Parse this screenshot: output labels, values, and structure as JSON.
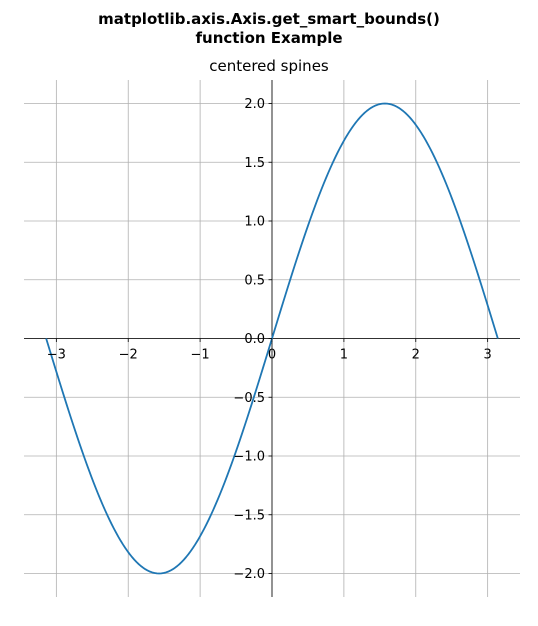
{
  "figure": {
    "suptitle_line1": "matplotlib.axis.Axis.get_smart_bounds()",
    "suptitle_line2": "function Example",
    "axes_title": "centered spines"
  },
  "chart_data": {
    "type": "line",
    "title": "centered spines",
    "xlabel": "",
    "ylabel": "",
    "xlim": [
      -3.45,
      3.45
    ],
    "ylim": [
      -2.2,
      2.2
    ],
    "xticks": [
      -3,
      -2,
      -1,
      0,
      1,
      2,
      3
    ],
    "xtick_labels": [
      "−3",
      "−2",
      "−1",
      "0",
      "1",
      "2",
      "3"
    ],
    "yticks": [
      -2.0,
      -1.5,
      -1.0,
      -0.5,
      0.0,
      0.5,
      1.0,
      1.5,
      2.0
    ],
    "ytick_labels": [
      "−2.0",
      "−1.5",
      "−1.0",
      "−0.5",
      "0.0",
      "0.5",
      "1.0",
      "1.5",
      "2.0"
    ],
    "grid": true,
    "spines": "centered at origin",
    "series": [
      {
        "color": "#1f77b4",
        "function": "y = 2 sin(x)",
        "x": [
          -3.1416,
          -2.7489,
          -2.3562,
          -1.9635,
          -1.5708,
          -1.1781,
          -0.7854,
          -0.3927,
          0.0,
          0.3927,
          0.7854,
          1.1781,
          1.5708,
          1.9635,
          2.3562,
          2.7489,
          3.1416
        ],
        "y": [
          0.0,
          -0.7654,
          -1.4142,
          -1.8478,
          -2.0,
          -1.8478,
          -1.4142,
          -0.7654,
          0.0,
          0.7654,
          1.4142,
          1.8478,
          2.0,
          1.8478,
          1.4142,
          0.7654,
          0.0
        ]
      }
    ]
  }
}
